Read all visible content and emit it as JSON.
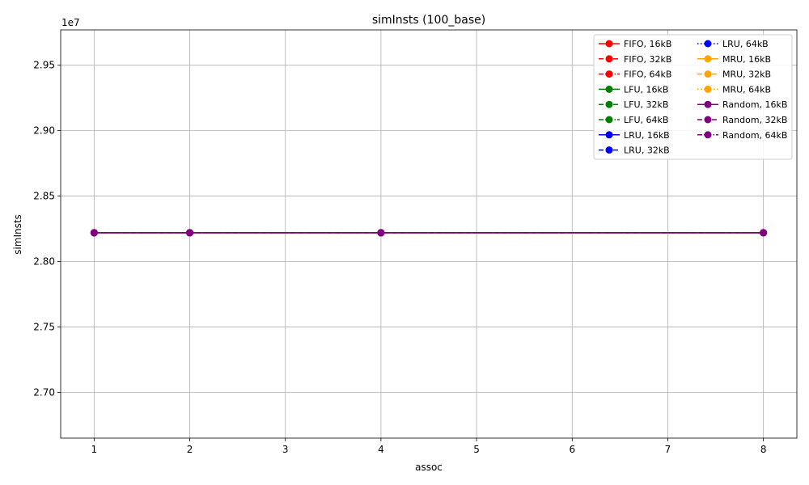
{
  "chart_data": {
    "type": "line",
    "title": "simInsts (100_base)",
    "xlabel": "assoc",
    "ylabel": "simInsts",
    "y_offset_label": "1e7",
    "xlim": [
      0.65,
      8.35
    ],
    "ylim": [
      26650000,
      29770000
    ],
    "x_ticks": [
      1,
      2,
      3,
      4,
      5,
      6,
      7,
      8
    ],
    "x_tick_labels": [
      "1",
      "2",
      "3",
      "4",
      "5",
      "6",
      "7",
      "8"
    ],
    "y_ticks": [
      27000000,
      27500000,
      28000000,
      28500000,
      29000000,
      29500000
    ],
    "y_tick_labels": [
      "2.70",
      "2.75",
      "2.80",
      "2.85",
      "2.90",
      "2.95"
    ],
    "grid": true,
    "legend_position": "top-right",
    "legend_columns": 2,
    "x": [
      1,
      2,
      4,
      8
    ],
    "series": [
      {
        "name": "FIFO, 16kB",
        "color": "#ff0000",
        "dash": "solid",
        "values": [
          28220000,
          28220000,
          28220000,
          28220000
        ]
      },
      {
        "name": "FIFO, 32kB",
        "color": "#ff0000",
        "dash": "dashed",
        "values": [
          28220000,
          28220000,
          28220000,
          28220000
        ]
      },
      {
        "name": "FIFO, 64kB",
        "color": "#ff0000",
        "dash": "dashdot",
        "values": [
          28220000,
          28220000,
          28220000,
          28220000
        ]
      },
      {
        "name": "LFU, 16kB",
        "color": "#008000",
        "dash": "solid",
        "values": [
          28220000,
          28220000,
          28220000,
          28220000
        ]
      },
      {
        "name": "LFU, 32kB",
        "color": "#008000",
        "dash": "dashed",
        "values": [
          28220000,
          28220000,
          28220000,
          28220000
        ]
      },
      {
        "name": "LFU, 64kB",
        "color": "#008000",
        "dash": "dashdot",
        "values": [
          28220000,
          28220000,
          28220000,
          28220000
        ]
      },
      {
        "name": "LRU, 16kB",
        "color": "#0000ff",
        "dash": "solid",
        "values": [
          28220000,
          28220000,
          28220000,
          28220000
        ]
      },
      {
        "name": "LRU, 32kB",
        "color": "#0000ff",
        "dash": "dashed",
        "values": [
          28220000,
          28220000,
          28220000,
          28220000
        ]
      },
      {
        "name": "LRU, 64kB",
        "color": "#0000ff",
        "dash": "dotted",
        "values": [
          28220000,
          28220000,
          28220000,
          28220000
        ]
      },
      {
        "name": "MRU, 16kB",
        "color": "#ffa500",
        "dash": "solid",
        "values": [
          28220000,
          28220000,
          28220000,
          28220000
        ]
      },
      {
        "name": "MRU, 32kB",
        "color": "#ffa500",
        "dash": "dashed",
        "values": [
          28220000,
          28220000,
          28220000,
          28220000
        ]
      },
      {
        "name": "MRU, 64kB",
        "color": "#ffa500",
        "dash": "dotted",
        "values": [
          28220000,
          28220000,
          28220000,
          28220000
        ]
      },
      {
        "name": "Random, 16kB",
        "color": "#800080",
        "dash": "solid",
        "values": [
          28220000,
          28220000,
          28220000,
          28220000
        ]
      },
      {
        "name": "Random, 32kB",
        "color": "#800080",
        "dash": "dashed",
        "values": [
          28220000,
          28220000,
          28220000,
          28220000
        ]
      },
      {
        "name": "Random, 64kB",
        "color": "#800080",
        "dash": "dashdot",
        "values": [
          28220000,
          28220000,
          28220000,
          28220000
        ]
      }
    ]
  }
}
